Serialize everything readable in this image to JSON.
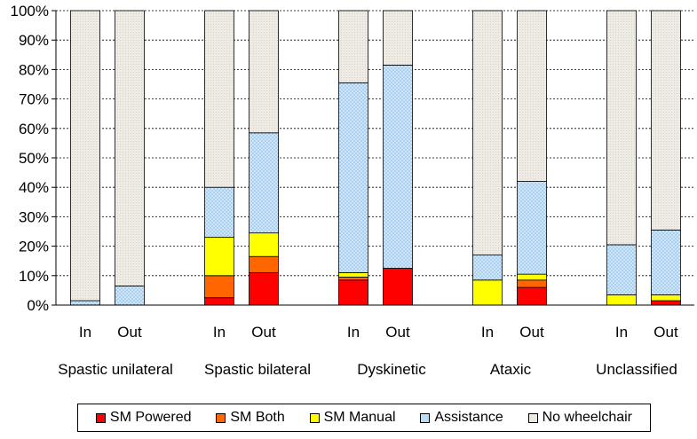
{
  "chart_data": {
    "type": "bar",
    "stacked": true,
    "ylim": [
      0,
      100
    ],
    "ytick_values": [
      0,
      10,
      20,
      30,
      40,
      50,
      60,
      70,
      80,
      90,
      100
    ],
    "ytick_labels": [
      "0%",
      "10%",
      "20%",
      "30%",
      "40%",
      "50%",
      "60%",
      "70%",
      "80%",
      "90%",
      "100%"
    ],
    "groups": [
      {
        "label": "Spastic unilateral",
        "bars": [
          "In",
          "Out"
        ]
      },
      {
        "label": "Spastic bilateral",
        "bars": [
          "In",
          "Out"
        ]
      },
      {
        "label": "Dyskinetic",
        "bars": [
          "In",
          "Out"
        ]
      },
      {
        "label": "Ataxic",
        "bars": [
          "In",
          "Out"
        ]
      },
      {
        "label": "Unclassified",
        "bars": [
          "In",
          "Out"
        ]
      }
    ],
    "bar_labels": [
      "In",
      "Out",
      "In",
      "Out",
      "In",
      "Out",
      "In",
      "Out",
      "In",
      "Out"
    ],
    "series": [
      {
        "name": "SM Powered",
        "color": "#ff0000",
        "values": [
          0,
          0,
          2.5,
          11,
          8.5,
          12.5,
          0,
          6,
          0,
          1.5
        ]
      },
      {
        "name": "SM Both",
        "color": "#ff6600",
        "values": [
          0,
          0,
          7.5,
          5.5,
          1,
          0,
          0,
          2.5,
          0,
          0
        ]
      },
      {
        "name": "SM Manual",
        "color": "#ffff00",
        "values": [
          0,
          0,
          13,
          8,
          1.5,
          0,
          8.5,
          2,
          3.5,
          2
        ]
      },
      {
        "name": "Assistance",
        "color": "#bcdcf4",
        "values": [
          1.5,
          6.5,
          17,
          34,
          64.5,
          69,
          8.5,
          31.5,
          17,
          22
        ]
      },
      {
        "name": "No wheelchair",
        "color": "#ece9e2",
        "values": [
          98.5,
          93.5,
          60,
          41.5,
          24.5,
          18.5,
          83,
          58,
          79.5,
          74.5
        ]
      }
    ]
  }
}
